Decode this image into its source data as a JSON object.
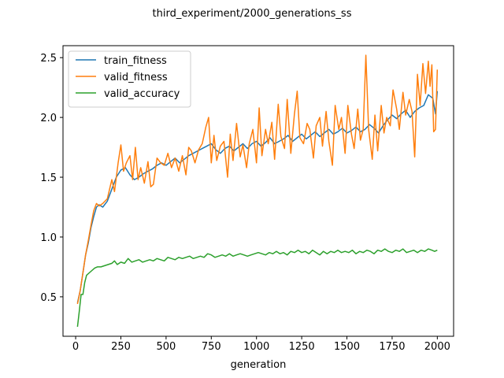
{
  "chart_data": {
    "type": "line",
    "title": "third_experiment/2000_generations_ss",
    "xlabel": "generation",
    "ylabel": "",
    "xlim": [
      -70,
      2090
    ],
    "ylim": [
      0.17,
      2.6
    ],
    "xticks": [
      0,
      250,
      500,
      750,
      1000,
      1250,
      1500,
      1750,
      2000
    ],
    "yticks": [
      0.5,
      1.0,
      1.5,
      2.0,
      2.5
    ],
    "ytick_labels": [
      "0.5",
      "1.0",
      "1.5",
      "2.0",
      "2.5"
    ],
    "grid": false,
    "legend_position": "upper-left",
    "series": [
      {
        "name": "train_fitness",
        "color": "#1f77b4",
        "points": [
          [
            10,
            0.45
          ],
          [
            25,
            0.55
          ],
          [
            40,
            0.7
          ],
          [
            55,
            0.85
          ],
          [
            70,
            0.95
          ],
          [
            85,
            1.08
          ],
          [
            100,
            1.17
          ],
          [
            115,
            1.25
          ],
          [
            130,
            1.27
          ],
          [
            150,
            1.25
          ],
          [
            175,
            1.3
          ],
          [
            200,
            1.4
          ],
          [
            225,
            1.5
          ],
          [
            250,
            1.56
          ],
          [
            275,
            1.58
          ],
          [
            300,
            1.52
          ],
          [
            325,
            1.48
          ],
          [
            350,
            1.5
          ],
          [
            375,
            1.53
          ],
          [
            400,
            1.55
          ],
          [
            425,
            1.57
          ],
          [
            450,
            1.6
          ],
          [
            475,
            1.62
          ],
          [
            500,
            1.6
          ],
          [
            525,
            1.63
          ],
          [
            550,
            1.66
          ],
          [
            575,
            1.62
          ],
          [
            600,
            1.65
          ],
          [
            625,
            1.68
          ],
          [
            650,
            1.7
          ],
          [
            675,
            1.72
          ],
          [
            700,
            1.74
          ],
          [
            725,
            1.76
          ],
          [
            750,
            1.78
          ],
          [
            775,
            1.73
          ],
          [
            800,
            1.7
          ],
          [
            825,
            1.74
          ],
          [
            850,
            1.76
          ],
          [
            875,
            1.72
          ],
          [
            900,
            1.75
          ],
          [
            925,
            1.78
          ],
          [
            950,
            1.74
          ],
          [
            975,
            1.78
          ],
          [
            1000,
            1.8
          ],
          [
            1025,
            1.76
          ],
          [
            1050,
            1.79
          ],
          [
            1075,
            1.83
          ],
          [
            1100,
            1.78
          ],
          [
            1125,
            1.8
          ],
          [
            1150,
            1.82
          ],
          [
            1175,
            1.85
          ],
          [
            1200,
            1.8
          ],
          [
            1225,
            1.83
          ],
          [
            1250,
            1.86
          ],
          [
            1275,
            1.82
          ],
          [
            1300,
            1.85
          ],
          [
            1325,
            1.88
          ],
          [
            1350,
            1.84
          ],
          [
            1375,
            1.87
          ],
          [
            1400,
            1.9
          ],
          [
            1425,
            1.86
          ],
          [
            1450,
            1.88
          ],
          [
            1475,
            1.91
          ],
          [
            1500,
            1.87
          ],
          [
            1525,
            1.89
          ],
          [
            1550,
            1.92
          ],
          [
            1575,
            1.88
          ],
          [
            1600,
            1.9
          ],
          [
            1625,
            1.94
          ],
          [
            1650,
            1.91
          ],
          [
            1675,
            1.87
          ],
          [
            1700,
            1.93
          ],
          [
            1725,
            1.98
          ],
          [
            1750,
            2.02
          ],
          [
            1775,
            1.99
          ],
          [
            1800,
            2.03
          ],
          [
            1825,
            2.06
          ],
          [
            1850,
            2.0
          ],
          [
            1875,
            2.05
          ],
          [
            1900,
            2.08
          ],
          [
            1925,
            2.1
          ],
          [
            1950,
            2.19
          ],
          [
            1975,
            2.16
          ],
          [
            1990,
            2.03
          ],
          [
            2000,
            2.22
          ]
        ]
      },
      {
        "name": "valid_fitness",
        "color": "#ff7f0e",
        "points": [
          [
            10,
            0.44
          ],
          [
            25,
            0.55
          ],
          [
            40,
            0.7
          ],
          [
            55,
            0.85
          ],
          [
            70,
            0.97
          ],
          [
            85,
            1.1
          ],
          [
            100,
            1.22
          ],
          [
            115,
            1.28
          ],
          [
            130,
            1.26
          ],
          [
            150,
            1.28
          ],
          [
            175,
            1.32
          ],
          [
            200,
            1.48
          ],
          [
            215,
            1.38
          ],
          [
            235,
            1.62
          ],
          [
            250,
            1.77
          ],
          [
            265,
            1.55
          ],
          [
            280,
            1.62
          ],
          [
            300,
            1.68
          ],
          [
            315,
            1.48
          ],
          [
            330,
            1.75
          ],
          [
            345,
            1.48
          ],
          [
            360,
            1.58
          ],
          [
            380,
            1.45
          ],
          [
            400,
            1.63
          ],
          [
            415,
            1.42
          ],
          [
            430,
            1.44
          ],
          [
            450,
            1.66
          ],
          [
            470,
            1.62
          ],
          [
            490,
            1.6
          ],
          [
            510,
            1.7
          ],
          [
            530,
            1.58
          ],
          [
            550,
            1.66
          ],
          [
            570,
            1.55
          ],
          [
            590,
            1.68
          ],
          [
            610,
            1.52
          ],
          [
            625,
            1.75
          ],
          [
            640,
            1.72
          ],
          [
            660,
            1.62
          ],
          [
            680,
            1.73
          ],
          [
            700,
            1.78
          ],
          [
            720,
            1.92
          ],
          [
            735,
            2.0
          ],
          [
            750,
            1.62
          ],
          [
            765,
            1.85
          ],
          [
            780,
            1.64
          ],
          [
            800,
            1.76
          ],
          [
            820,
            1.8
          ],
          [
            840,
            1.5
          ],
          [
            855,
            1.86
          ],
          [
            870,
            1.64
          ],
          [
            890,
            1.95
          ],
          [
            910,
            1.67
          ],
          [
            925,
            1.77
          ],
          [
            945,
            1.58
          ],
          [
            960,
            1.78
          ],
          [
            980,
            1.9
          ],
          [
            1000,
            1.62
          ],
          [
            1015,
            2.08
          ],
          [
            1030,
            1.68
          ],
          [
            1050,
            1.9
          ],
          [
            1065,
            1.78
          ],
          [
            1085,
            1.96
          ],
          [
            1100,
            1.65
          ],
          [
            1120,
            2.11
          ],
          [
            1135,
            1.84
          ],
          [
            1155,
            1.74
          ],
          [
            1170,
            2.15
          ],
          [
            1190,
            1.7
          ],
          [
            1210,
            2.03
          ],
          [
            1225,
            2.22
          ],
          [
            1240,
            1.83
          ],
          [
            1260,
            1.78
          ],
          [
            1280,
            1.95
          ],
          [
            1295,
            1.9
          ],
          [
            1315,
            1.66
          ],
          [
            1330,
            1.93
          ],
          [
            1350,
            2.0
          ],
          [
            1365,
            1.76
          ],
          [
            1385,
            2.05
          ],
          [
            1400,
            1.8
          ],
          [
            1420,
            1.6
          ],
          [
            1435,
            2.1
          ],
          [
            1455,
            1.9
          ],
          [
            1470,
            2.0
          ],
          [
            1490,
            1.7
          ],
          [
            1505,
            2.1
          ],
          [
            1525,
            1.86
          ],
          [
            1540,
            1.74
          ],
          [
            1560,
            2.07
          ],
          [
            1575,
            1.81
          ],
          [
            1590,
            1.9
          ],
          [
            1605,
            2.52
          ],
          [
            1620,
            1.9
          ],
          [
            1640,
            1.65
          ],
          [
            1655,
            2.02
          ],
          [
            1670,
            1.72
          ],
          [
            1690,
            2.1
          ],
          [
            1705,
            1.87
          ],
          [
            1720,
            2.0
          ],
          [
            1740,
            1.93
          ],
          [
            1755,
            2.23
          ],
          [
            1775,
            2.07
          ],
          [
            1790,
            1.9
          ],
          [
            1810,
            2.21
          ],
          [
            1825,
            2.02
          ],
          [
            1845,
            2.15
          ],
          [
            1860,
            2.05
          ],
          [
            1875,
            1.67
          ],
          [
            1890,
            2.36
          ],
          [
            1905,
            2.1
          ],
          [
            1920,
            2.45
          ],
          [
            1935,
            2.2
          ],
          [
            1950,
            2.47
          ],
          [
            1960,
            2.26
          ],
          [
            1970,
            2.44
          ],
          [
            1980,
            1.88
          ],
          [
            1990,
            1.9
          ],
          [
            2000,
            2.4
          ]
        ]
      },
      {
        "name": "valid_accuracy",
        "color": "#2ca02c",
        "points": [
          [
            10,
            0.25
          ],
          [
            20,
            0.38
          ],
          [
            30,
            0.52
          ],
          [
            40,
            0.52
          ],
          [
            50,
            0.62
          ],
          [
            60,
            0.68
          ],
          [
            75,
            0.7
          ],
          [
            90,
            0.72
          ],
          [
            105,
            0.74
          ],
          [
            120,
            0.75
          ],
          [
            140,
            0.75
          ],
          [
            160,
            0.76
          ],
          [
            180,
            0.77
          ],
          [
            200,
            0.78
          ],
          [
            215,
            0.8
          ],
          [
            230,
            0.77
          ],
          [
            250,
            0.79
          ],
          [
            270,
            0.78
          ],
          [
            290,
            0.82
          ],
          [
            310,
            0.79
          ],
          [
            330,
            0.8
          ],
          [
            350,
            0.81
          ],
          [
            370,
            0.79
          ],
          [
            390,
            0.8
          ],
          [
            410,
            0.81
          ],
          [
            430,
            0.8
          ],
          [
            450,
            0.82
          ],
          [
            470,
            0.81
          ],
          [
            490,
            0.8
          ],
          [
            510,
            0.83
          ],
          [
            530,
            0.82
          ],
          [
            550,
            0.81
          ],
          [
            570,
            0.83
          ],
          [
            590,
            0.82
          ],
          [
            610,
            0.83
          ],
          [
            630,
            0.84
          ],
          [
            650,
            0.82
          ],
          [
            670,
            0.83
          ],
          [
            690,
            0.84
          ],
          [
            710,
            0.83
          ],
          [
            730,
            0.86
          ],
          [
            750,
            0.85
          ],
          [
            770,
            0.83
          ],
          [
            790,
            0.84
          ],
          [
            810,
            0.85
          ],
          [
            830,
            0.84
          ],
          [
            850,
            0.86
          ],
          [
            870,
            0.84
          ],
          [
            890,
            0.85
          ],
          [
            910,
            0.86
          ],
          [
            930,
            0.85
          ],
          [
            950,
            0.84
          ],
          [
            970,
            0.85
          ],
          [
            990,
            0.86
          ],
          [
            1010,
            0.87
          ],
          [
            1030,
            0.86
          ],
          [
            1050,
            0.85
          ],
          [
            1070,
            0.87
          ],
          [
            1090,
            0.86
          ],
          [
            1110,
            0.88
          ],
          [
            1130,
            0.86
          ],
          [
            1150,
            0.87
          ],
          [
            1170,
            0.85
          ],
          [
            1190,
            0.88
          ],
          [
            1210,
            0.87
          ],
          [
            1230,
            0.89
          ],
          [
            1250,
            0.87
          ],
          [
            1270,
            0.88
          ],
          [
            1290,
            0.86
          ],
          [
            1310,
            0.89
          ],
          [
            1330,
            0.87
          ],
          [
            1350,
            0.85
          ],
          [
            1370,
            0.88
          ],
          [
            1390,
            0.86
          ],
          [
            1410,
            0.88
          ],
          [
            1430,
            0.87
          ],
          [
            1450,
            0.89
          ],
          [
            1470,
            0.87
          ],
          [
            1490,
            0.88
          ],
          [
            1510,
            0.87
          ],
          [
            1530,
            0.89
          ],
          [
            1550,
            0.86
          ],
          [
            1570,
            0.88
          ],
          [
            1590,
            0.87
          ],
          [
            1610,
            0.89
          ],
          [
            1630,
            0.88
          ],
          [
            1650,
            0.86
          ],
          [
            1670,
            0.89
          ],
          [
            1690,
            0.88
          ],
          [
            1710,
            0.9
          ],
          [
            1730,
            0.88
          ],
          [
            1750,
            0.87
          ],
          [
            1770,
            0.89
          ],
          [
            1790,
            0.88
          ],
          [
            1810,
            0.9
          ],
          [
            1830,
            0.87
          ],
          [
            1850,
            0.88
          ],
          [
            1870,
            0.89
          ],
          [
            1890,
            0.87
          ],
          [
            1910,
            0.89
          ],
          [
            1930,
            0.88
          ],
          [
            1950,
            0.9
          ],
          [
            1970,
            0.89
          ],
          [
            1985,
            0.88
          ],
          [
            2000,
            0.89
          ]
        ]
      }
    ]
  }
}
